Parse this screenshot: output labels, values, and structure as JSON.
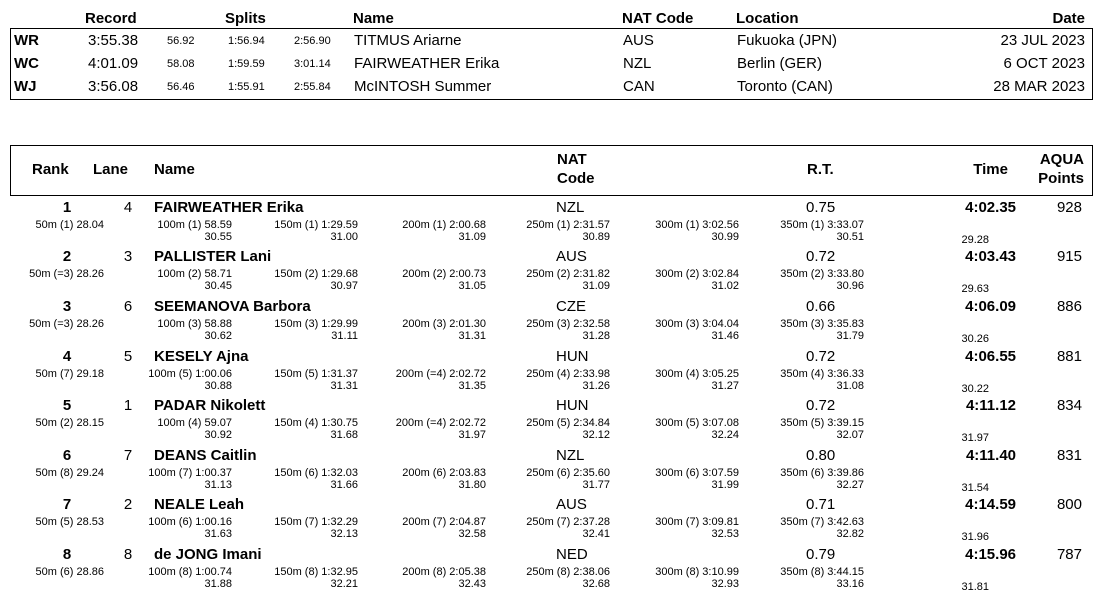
{
  "records": {
    "headers": {
      "record": "Record",
      "splits": "Splits",
      "name": "Name",
      "nat": "NAT Code",
      "location": "Location",
      "date": "Date"
    },
    "rows": [
      {
        "code": "WR",
        "time": "3:55.38",
        "s1": "56.92",
        "s2": "1:56.94",
        "s3": "2:56.90",
        "name": "TITMUS Ariarne",
        "nat": "AUS",
        "location": "Fukuoka (JPN)",
        "date": "23 JUL 2023"
      },
      {
        "code": "WC",
        "time": "4:01.09",
        "s1": "58.08",
        "s2": "1:59.59",
        "s3": "3:01.14",
        "name": "FAIRWEATHER Erika",
        "nat": "NZL",
        "location": "Berlin (GER)",
        "date": "6 OCT 2023"
      },
      {
        "code": "WJ",
        "time": "3:56.08",
        "s1": "56.46",
        "s2": "1:55.91",
        "s3": "2:55.84",
        "name": "McINTOSH Summer",
        "nat": "CAN",
        "location": "Toronto (CAN)",
        "date": "28 MAR 2023"
      }
    ]
  },
  "results": {
    "headers": {
      "rank": "Rank",
      "lane": "Lane",
      "name": "Name",
      "nat_line1": "NAT",
      "nat_line2": "Code",
      "rt": "R.T.",
      "time": "Time",
      "points_line1": "AQUA",
      "points_line2": "Points"
    },
    "athletes": [
      {
        "rank": "1",
        "lane": "4",
        "name": "FAIRWEATHER Erika",
        "nat": "NZL",
        "rt": "0.75",
        "time": "4:02.35",
        "points": "928",
        "s50": "50m (1) 28.04",
        "s100": "100m (1) 58.59",
        "d100": "30.55",
        "s150": "150m (1) 1:29.59",
        "d150": "31.00",
        "s200": "200m (1) 2:00.68",
        "d200": "31.09",
        "s250": "250m (1) 2:31.57",
        "d250": "30.89",
        "s300": "300m (1) 3:02.56",
        "d300": "30.99",
        "s350": "350m (1) 3:33.07",
        "d350": "30.51",
        "d400": "29.28"
      },
      {
        "rank": "2",
        "lane": "3",
        "name": "PALLISTER Lani",
        "nat": "AUS",
        "rt": "0.72",
        "time": "4:03.43",
        "points": "915",
        "s50": "50m (=3) 28.26",
        "s100": "100m (2) 58.71",
        "d100": "30.45",
        "s150": "150m (2) 1:29.68",
        "d150": "30.97",
        "s200": "200m (2) 2:00.73",
        "d200": "31.05",
        "s250": "250m (2) 2:31.82",
        "d250": "31.09",
        "s300": "300m (2) 3:02.84",
        "d300": "31.02",
        "s350": "350m (2) 3:33.80",
        "d350": "30.96",
        "d400": "29.63"
      },
      {
        "rank": "3",
        "lane": "6",
        "name": "SEEMANOVA Barbora",
        "nat": "CZE",
        "rt": "0.66",
        "time": "4:06.09",
        "points": "886",
        "s50": "50m (=3) 28.26",
        "s100": "100m (3) 58.88",
        "d100": "30.62",
        "s150": "150m (3) 1:29.99",
        "d150": "31.11",
        "s200": "200m (3) 2:01.30",
        "d200": "31.31",
        "s250": "250m (3) 2:32.58",
        "d250": "31.28",
        "s300": "300m (3) 3:04.04",
        "d300": "31.46",
        "s350": "350m (3) 3:35.83",
        "d350": "31.79",
        "d400": "30.26"
      },
      {
        "rank": "4",
        "lane": "5",
        "name": "KESELY Ajna",
        "nat": "HUN",
        "rt": "0.72",
        "time": "4:06.55",
        "points": "881",
        "s50": "50m (7) 29.18",
        "s100": "100m (5) 1:00.06",
        "d100": "30.88",
        "s150": "150m (5) 1:31.37",
        "d150": "31.31",
        "s200": "200m (=4) 2:02.72",
        "d200": "31.35",
        "s250": "250m (4) 2:33.98",
        "d250": "31.26",
        "s300": "300m (4) 3:05.25",
        "d300": "31.27",
        "s350": "350m (4) 3:36.33",
        "d350": "31.08",
        "d400": "30.22"
      },
      {
        "rank": "5",
        "lane": "1",
        "name": "PADAR Nikolett",
        "nat": "HUN",
        "rt": "0.72",
        "time": "4:11.12",
        "points": "834",
        "s50": "50m (2) 28.15",
        "s100": "100m (4) 59.07",
        "d100": "30.92",
        "s150": "150m (4) 1:30.75",
        "d150": "31.68",
        "s200": "200m (=4) 2:02.72",
        "d200": "31.97",
        "s250": "250m (5) 2:34.84",
        "d250": "32.12",
        "s300": "300m (5) 3:07.08",
        "d300": "32.24",
        "s350": "350m (5) 3:39.15",
        "d350": "32.07",
        "d400": "31.97"
      },
      {
        "rank": "6",
        "lane": "7",
        "name": "DEANS Caitlin",
        "nat": "NZL",
        "rt": "0.80",
        "time": "4:11.40",
        "points": "831",
        "s50": "50m (8) 29.24",
        "s100": "100m (7) 1:00.37",
        "d100": "31.13",
        "s150": "150m (6) 1:32.03",
        "d150": "31.66",
        "s200": "200m (6) 2:03.83",
        "d200": "31.80",
        "s250": "250m (6) 2:35.60",
        "d250": "31.77",
        "s300": "300m (6) 3:07.59",
        "d300": "31.99",
        "s350": "350m (6) 3:39.86",
        "d350": "32.27",
        "d400": "31.54"
      },
      {
        "rank": "7",
        "lane": "2",
        "name": "NEALE Leah",
        "nat": "AUS",
        "rt": "0.71",
        "time": "4:14.59",
        "points": "800",
        "s50": "50m (5) 28.53",
        "s100": "100m (6) 1:00.16",
        "d100": "31.63",
        "s150": "150m (7) 1:32.29",
        "d150": "32.13",
        "s200": "200m (7) 2:04.87",
        "d200": "32.58",
        "s250": "250m (7) 2:37.28",
        "d250": "32.41",
        "s300": "300m (7) 3:09.81",
        "d300": "32.53",
        "s350": "350m (7) 3:42.63",
        "d350": "32.82",
        "d400": "31.96"
      },
      {
        "rank": "8",
        "lane": "8",
        "name": "de JONG Imani",
        "nat": "NED",
        "rt": "0.79",
        "time": "4:15.96",
        "points": "787",
        "s50": "50m (6) 28.86",
        "s100": "100m (8) 1:00.74",
        "d100": "31.88",
        "s150": "150m (8) 1:32.95",
        "d150": "32.21",
        "s200": "200m (8) 2:05.38",
        "d200": "32.43",
        "s250": "250m (8) 2:38.06",
        "d250": "32.68",
        "s300": "300m (8) 3:10.99",
        "d300": "32.93",
        "s350": "350m (8) 3:44.15",
        "d350": "33.16",
        "d400": "31.81"
      }
    ]
  }
}
